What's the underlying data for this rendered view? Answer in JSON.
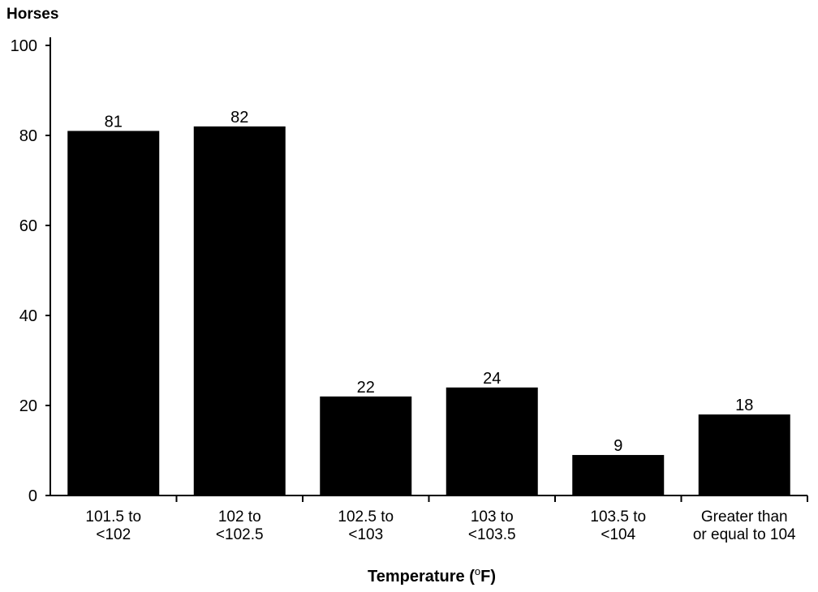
{
  "chart_data": {
    "type": "bar",
    "title": "",
    "ylabel": "Horses",
    "xlabel": "Temperature (",
    "xlabel_superscript": "o",
    "xlabel_suffix": "F)",
    "ylim": [
      0,
      100
    ],
    "yticks": [
      "0",
      "20",
      "40",
      "60",
      "80",
      "100"
    ],
    "categories": [
      [
        "101.5 to",
        "<102"
      ],
      [
        "102 to",
        "<102.5"
      ],
      [
        "102.5 to",
        "<103"
      ],
      [
        "103 to",
        "<103.5"
      ],
      [
        "103.5 to",
        "<104"
      ],
      [
        "Greater than",
        "or equal to 104"
      ]
    ],
    "values": [
      81,
      82,
      22,
      24,
      9,
      18
    ],
    "data_labels": [
      "81",
      "82",
      "22",
      "24",
      "9",
      "18"
    ],
    "grid": false,
    "bar_color": "#000000"
  }
}
